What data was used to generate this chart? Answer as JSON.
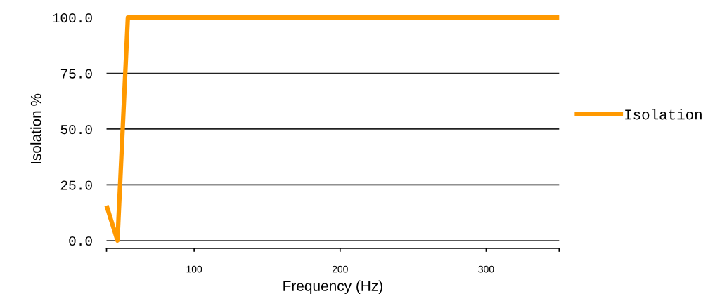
{
  "chart_data": {
    "type": "line",
    "xlabel": "Frequency (Hz)",
    "ylabel": "Isolation %",
    "x": [
      40,
      47.5,
      54.6,
      350
    ],
    "series": [
      {
        "name": "Isolation",
        "color": "#ff9900",
        "values": [
          15.7,
          0,
          100,
          100
        ]
      }
    ],
    "xlim": [
      40,
      350
    ],
    "xticks": [
      {
        "value": 40,
        "label": null
      },
      100,
      200,
      300,
      {
        "value": 350,
        "label": null
      }
    ],
    "ylim": [
      0,
      100
    ],
    "yticks": [
      {
        "value": 0,
        "label": "0.0"
      },
      {
        "value": 25,
        "label": "25.0"
      },
      {
        "value": 50,
        "label": "50.0"
      },
      {
        "value": 75,
        "label": "75.0"
      },
      {
        "value": 100,
        "label": "100.0"
      }
    ],
    "grid": "y",
    "legend": "right",
    "marker": "none",
    "line_style": "solid"
  }
}
